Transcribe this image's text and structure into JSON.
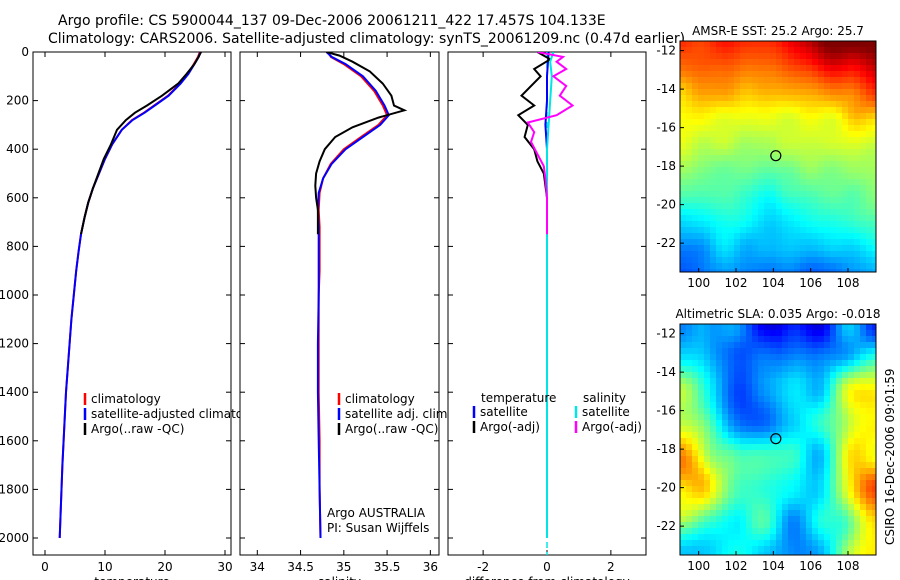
{
  "header": {
    "line1": "Argo profile: CS 5900044_137 09-Dec-2006 20061211_422 17.457S 104.133E",
    "line2": "Climatology: CARS2006. Satellite-adjusted climatology: synTS_20061209.nc (0.47d earlier)"
  },
  "credit": "CSIRO 16-Dec-2006 09:01:59",
  "colors": {
    "climatology": "#ff0000",
    "satellite": "#0000ff",
    "argo": "#000000",
    "sal_satellite": "#00e6e6",
    "sal_argo": "#ff00ff"
  },
  "chart_data": [
    {
      "id": "temperature",
      "type": "line",
      "xlabel": "temperature",
      "ylabel": "",
      "xlim": [
        -2,
        31
      ],
      "ylim": [
        2070,
        0
      ],
      "xticks": [
        0,
        10,
        20,
        30
      ],
      "yticks": [
        0,
        200,
        400,
        600,
        800,
        1000,
        1200,
        1400,
        1600,
        1800,
        2000
      ],
      "legend": {
        "position": "bottom-center",
        "entries": [
          "climatology",
          "satellite-adjusted climatology",
          "Argo(..raw -QC)"
        ]
      },
      "series": [
        {
          "name": "climatology",
          "color": "#ff0000",
          "points": [
            [
              25.8,
              0
            ],
            [
              25.5,
              20
            ],
            [
              24.8,
              50
            ],
            [
              23.8,
              90
            ],
            [
              22.5,
              130
            ],
            [
              20.5,
              180
            ],
            [
              18.2,
              220
            ],
            [
              16.5,
              250
            ],
            [
              14.5,
              280
            ],
            [
              12.8,
              320
            ],
            [
              11.2,
              380
            ],
            [
              10.0,
              440
            ],
            [
              9.0,
              500
            ],
            [
              8.0,
              560
            ],
            [
              7.2,
              620
            ],
            [
              6.6,
              680
            ],
            [
              6.0,
              750
            ],
            [
              5.6,
              820
            ],
            [
              5.2,
              900
            ],
            [
              4.8,
              1000
            ],
            [
              4.4,
              1100
            ],
            [
              4.1,
              1200
            ],
            [
              3.8,
              1300
            ],
            [
              3.5,
              1400
            ],
            [
              3.3,
              1500
            ],
            [
              3.1,
              1600
            ],
            [
              2.9,
              1700
            ],
            [
              2.75,
              1800
            ],
            [
              2.6,
              1900
            ],
            [
              2.45,
              2000
            ]
          ]
        },
        {
          "name": "satellite-adjusted climatology",
          "color": "#0000ff",
          "points": [
            [
              25.9,
              0
            ],
            [
              25.6,
              20
            ],
            [
              24.9,
              50
            ],
            [
              23.9,
              90
            ],
            [
              22.6,
              130
            ],
            [
              20.6,
              180
            ],
            [
              18.3,
              220
            ],
            [
              16.6,
              250
            ],
            [
              14.6,
              280
            ],
            [
              12.8,
              320
            ],
            [
              11.2,
              380
            ],
            [
              10.0,
              440
            ],
            [
              9.0,
              500
            ],
            [
              8.0,
              560
            ],
            [
              7.2,
              620
            ],
            [
              6.6,
              680
            ],
            [
              6.0,
              750
            ],
            [
              5.6,
              820
            ],
            [
              5.2,
              900
            ],
            [
              4.8,
              1000
            ],
            [
              4.4,
              1100
            ],
            [
              4.1,
              1200
            ],
            [
              3.8,
              1300
            ],
            [
              3.5,
              1400
            ],
            [
              3.3,
              1500
            ],
            [
              3.1,
              1600
            ],
            [
              2.9,
              1700
            ],
            [
              2.75,
              1800
            ],
            [
              2.6,
              1900
            ],
            [
              2.45,
              2000
            ]
          ]
        },
        {
          "name": "Argo(..raw -QC)",
          "color": "#000000",
          "points": [
            [
              26.0,
              0
            ],
            [
              25.6,
              20
            ],
            [
              24.9,
              50
            ],
            [
              23.6,
              90
            ],
            [
              22.2,
              130
            ],
            [
              19.5,
              180
            ],
            [
              17.0,
              220
            ],
            [
              15.0,
              250
            ],
            [
              13.5,
              280
            ],
            [
              12.0,
              320
            ],
            [
              11.0,
              380
            ],
            [
              9.8,
              440
            ],
            [
              8.9,
              500
            ],
            [
              8.0,
              560
            ],
            [
              7.2,
              620
            ],
            [
              6.6,
              680
            ],
            [
              6.0,
              750
            ]
          ]
        }
      ]
    },
    {
      "id": "salinity",
      "type": "line",
      "xlabel": "salinity",
      "ylabel": "",
      "xlim": [
        33.8,
        36.1
      ],
      "ylim": [
        2070,
        0
      ],
      "xticks": [
        34,
        34.5,
        35,
        35.5,
        36
      ],
      "xticklabels": [
        "34",
        "34.5",
        "35",
        "35.5",
        "36"
      ],
      "yticks": [
        0,
        200,
        400,
        600,
        800,
        1000,
        1200,
        1400,
        1600,
        1800,
        2000
      ],
      "legend": {
        "position": "bottom-right",
        "entries": [
          "climatology",
          "satellite adj. clim.",
          "Argo(..raw -QC)"
        ]
      },
      "annotation": [
        "Argo AUSTRALIA",
        "PI: Susan Wijffels"
      ],
      "series": [
        {
          "name": "climatology",
          "color": "#ff0000",
          "points": [
            [
              34.82,
              0
            ],
            [
              34.85,
              20
            ],
            [
              35.0,
              50
            ],
            [
              35.2,
              100
            ],
            [
              35.35,
              160
            ],
            [
              35.45,
              220
            ],
            [
              35.5,
              260
            ],
            [
              35.4,
              300
            ],
            [
              35.2,
              350
            ],
            [
              35.0,
              400
            ],
            [
              34.85,
              460
            ],
            [
              34.76,
              520
            ],
            [
              34.72,
              580
            ],
            [
              34.71,
              650
            ],
            [
              34.72,
              720
            ],
            [
              34.72,
              800
            ],
            [
              34.72,
              900
            ],
            [
              34.71,
              1000
            ],
            [
              34.71,
              1200
            ],
            [
              34.71,
              1400
            ],
            [
              34.72,
              1600
            ],
            [
              34.72,
              1800
            ],
            [
              34.73,
              2000
            ]
          ]
        },
        {
          "name": "satellite adj. clim.",
          "color": "#0000ff",
          "points": [
            [
              34.8,
              0
            ],
            [
              34.86,
              20
            ],
            [
              35.02,
              50
            ],
            [
              35.22,
              100
            ],
            [
              35.37,
              160
            ],
            [
              35.47,
              220
            ],
            [
              35.52,
              260
            ],
            [
              35.42,
              300
            ],
            [
              35.22,
              350
            ],
            [
              35.02,
              400
            ],
            [
              34.86,
              460
            ],
            [
              34.76,
              520
            ],
            [
              34.71,
              580
            ],
            [
              34.7,
              650
            ],
            [
              34.71,
              720
            ],
            [
              34.71,
              800
            ],
            [
              34.71,
              900
            ],
            [
              34.71,
              1000
            ],
            [
              34.7,
              1200
            ],
            [
              34.7,
              1400
            ],
            [
              34.71,
              1600
            ],
            [
              34.72,
              1800
            ],
            [
              34.73,
              2000
            ]
          ]
        },
        {
          "name": "Argo(..raw -QC)",
          "color": "#000000",
          "points": [
            [
              34.8,
              0
            ],
            [
              34.95,
              15
            ],
            [
              35.1,
              40
            ],
            [
              35.3,
              80
            ],
            [
              35.45,
              130
            ],
            [
              35.55,
              180
            ],
            [
              35.58,
              220
            ],
            [
              35.7,
              240
            ],
            [
              35.4,
              270
            ],
            [
              35.1,
              310
            ],
            [
              34.9,
              350
            ],
            [
              34.78,
              400
            ],
            [
              34.72,
              450
            ],
            [
              34.68,
              500
            ],
            [
              34.67,
              550
            ],
            [
              34.68,
              600
            ],
            [
              34.7,
              650
            ],
            [
              34.7,
              700
            ],
            [
              34.7,
              750
            ]
          ]
        }
      ]
    },
    {
      "id": "difference",
      "type": "line",
      "xlabel": "difference from climatology",
      "ylabel": "",
      "xlim": [
        -3.1,
        3.1
      ],
      "ylim": [
        2070,
        0
      ],
      "xticks": [
        -2,
        0,
        2
      ],
      "yticks": [
        0,
        200,
        400,
        600,
        800,
        1000,
        1200,
        1400,
        1600,
        1800,
        2000
      ],
      "legend": {
        "position": "center",
        "temperature": {
          "title": "temperature",
          "entries": [
            "satellite",
            "Argo(-adj)"
          ]
        },
        "salinity": {
          "title": "salinity",
          "entries": [
            "satellite",
            "Argo(-adj)"
          ]
        }
      },
      "series": [
        {
          "name": "temperature satellite",
          "color": "#0000ff",
          "points": [
            [
              0.05,
              0
            ],
            [
              0.0,
              100
            ],
            [
              0.0,
              200
            ],
            [
              -0.05,
              300
            ],
            [
              0.0,
              400
            ],
            [
              0.0,
              500
            ],
            [
              0.0,
              700
            ],
            [
              0.0,
              1000
            ],
            [
              0.0,
              1500
            ],
            [
              0.0,
              2000
            ]
          ]
        },
        {
          "name": "temperature Argo(-adj)",
          "color": "#000000",
          "points": [
            [
              -0.3,
              0
            ],
            [
              0.1,
              30
            ],
            [
              -0.4,
              70
            ],
            [
              -0.2,
              100
            ],
            [
              -0.8,
              180
            ],
            [
              -0.4,
              220
            ],
            [
              -0.9,
              260
            ],
            [
              -0.6,
              300
            ],
            [
              -0.7,
              350
            ],
            [
              -0.4,
              400
            ],
            [
              -0.3,
              450
            ],
            [
              -0.1,
              500
            ],
            [
              0.0,
              600
            ],
            [
              0.0,
              750
            ]
          ]
        },
        {
          "name": "salinity satellite",
          "color": "#00e6e6",
          "points": [
            [
              0.2,
              0
            ],
            [
              0.1,
              40
            ],
            [
              0.15,
              100
            ],
            [
              0.1,
              200
            ],
            [
              0.05,
              300
            ],
            [
              0.0,
              400
            ],
            [
              0.0,
              500
            ],
            [
              0.0,
              700
            ],
            [
              0.0,
              1000
            ],
            [
              0.0,
              1500
            ],
            [
              0.0,
              2000
            ]
          ]
        },
        {
          "name": "salinity Argo(-adj)",
          "color": "#ff00ff",
          "points": [
            [
              -0.3,
              0
            ],
            [
              0.5,
              20
            ],
            [
              0.3,
              40
            ],
            [
              0.6,
              70
            ],
            [
              0.2,
              100
            ],
            [
              0.6,
              140
            ],
            [
              0.4,
              180
            ],
            [
              0.8,
              220
            ],
            [
              0.3,
              260
            ],
            [
              -0.6,
              290
            ],
            [
              -0.4,
              330
            ],
            [
              -0.5,
              370
            ],
            [
              -0.3,
              420
            ],
            [
              -0.1,
              470
            ],
            [
              -0.05,
              520
            ],
            [
              0.0,
              600
            ],
            [
              0.0,
              750
            ]
          ]
        }
      ]
    },
    {
      "id": "sst_map",
      "type": "heatmap",
      "title": "AMSR-E SST: 25.2 Argo: 25.7",
      "xlim": [
        99,
        109.5
      ],
      "ylim": [
        -23.5,
        -11.5
      ],
      "xticks": [
        100,
        102,
        104,
        106,
        108
      ],
      "yticks": [
        -12,
        -14,
        -16,
        -18,
        -20,
        -22
      ],
      "marker": {
        "lon": 104.133,
        "lat": -17.457
      }
    },
    {
      "id": "sla_map",
      "type": "heatmap",
      "title": "Altimetric SLA: 0.035 Argo: -0.018",
      "xlim": [
        99,
        109.5
      ],
      "ylim": [
        -23.5,
        -11.5
      ],
      "xticks": [
        100,
        102,
        104,
        106,
        108
      ],
      "yticks": [
        -12,
        -14,
        -16,
        -18,
        -20,
        -22
      ],
      "marker": {
        "lon": 104.133,
        "lat": -17.457
      }
    }
  ]
}
